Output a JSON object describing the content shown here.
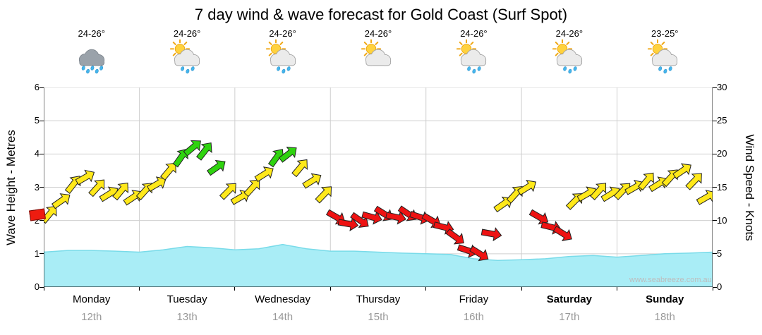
{
  "title": "7 day wind & wave forecast for Gold Coast (Surf Spot)",
  "watermark": "www.seabreeze.com.au",
  "days": [
    {
      "name": "Monday",
      "date": "12th",
      "temp": "24-26°",
      "icon": "rain",
      "bold": false
    },
    {
      "name": "Tuesday",
      "date": "13th",
      "temp": "24-26°",
      "icon": "sun-showers",
      "bold": false
    },
    {
      "name": "Wednesday",
      "date": "14th",
      "temp": "24-26°",
      "icon": "sun-showers",
      "bold": false
    },
    {
      "name": "Thursday",
      "date": "15th",
      "temp": "24-26°",
      "icon": "partly-cloudy",
      "bold": false
    },
    {
      "name": "Friday",
      "date": "16th",
      "temp": "24-26°",
      "icon": "sun-showers",
      "bold": false
    },
    {
      "name": "Saturday",
      "date": "17th",
      "temp": "24-26°",
      "icon": "sun-showers",
      "bold": true
    },
    {
      "name": "Sunday",
      "date": "18th",
      "temp": "23-25°",
      "icon": "sun-showers",
      "bold": true
    }
  ],
  "axes": {
    "left": {
      "title": "Wave Height - Metres",
      "ticks": [
        0,
        1,
        2,
        3,
        4,
        5,
        6
      ],
      "range": [
        0,
        6
      ]
    },
    "right": {
      "title": "Wind Speed - Knots",
      "ticks": [
        0,
        5,
        10,
        15,
        20,
        25,
        30
      ],
      "range": [
        0,
        30
      ]
    }
  },
  "chart_data": {
    "type": "mixed",
    "title": "7 day wind & wave forecast for Gold Coast (Surf Spot)",
    "x_categories": [
      "Monday 12th",
      "Tuesday 13th",
      "Wednesday 14th",
      "Thursday 15th",
      "Friday 16th",
      "Saturday 17th",
      "Sunday 18th"
    ],
    "ylim_left": [
      0,
      6
    ],
    "ylim_right": [
      0,
      30
    ],
    "grid": true,
    "series": [
      {
        "name": "Wave Height",
        "type": "area",
        "unit": "m",
        "axis": "left",
        "color": "#a9edf6",
        "line_color": "#79dbe9",
        "values": [
          1.05,
          1.1,
          1.1,
          1.08,
          1.05,
          1.12,
          1.22,
          1.18,
          1.12,
          1.15,
          1.28,
          1.15,
          1.08,
          1.08,
          1.05,
          1.02,
          1.0,
          0.98,
          0.85,
          0.8,
          0.82,
          0.85,
          0.92,
          0.95,
          0.9,
          0.95,
          1.0,
          1.02,
          1.05
        ]
      },
      {
        "name": "Wind",
        "type": "wind-arrows",
        "unit": "knots",
        "axis": "right",
        "colors": {
          "y": "#ffe81a",
          "g": "#2fd30f",
          "r": "#ee1212"
        },
        "point_format": [
          "knots",
          "direction_deg",
          "color"
        ],
        "points": [
          [
            11,
            40,
            "y"
          ],
          [
            13,
            55,
            "y"
          ],
          [
            15.5,
            38,
            "y"
          ],
          [
            16.5,
            60,
            "y"
          ],
          [
            15,
            42,
            "y"
          ],
          [
            14,
            58,
            "y"
          ],
          [
            14.5,
            40,
            "y"
          ],
          [
            13.5,
            56,
            "y"
          ],
          [
            14.5,
            42,
            "y"
          ],
          [
            15.5,
            60,
            "y"
          ],
          [
            17.5,
            40,
            "y"
          ],
          [
            19.5,
            35,
            "g"
          ],
          [
            21,
            50,
            "g"
          ],
          [
            20.5,
            38,
            "g"
          ],
          [
            18,
            55,
            "g"
          ],
          [
            14.5,
            45,
            "y"
          ],
          [
            13.5,
            60,
            "y"
          ],
          [
            15,
            42,
            "y"
          ],
          [
            17,
            58,
            "y"
          ],
          [
            19.5,
            36,
            "g"
          ],
          [
            20,
            52,
            "g"
          ],
          [
            18,
            40,
            "y"
          ],
          [
            16,
            58,
            "y"
          ],
          [
            14,
            44,
            "y"
          ],
          [
            10.5,
            120,
            "r"
          ],
          [
            9.5,
            100,
            "r"
          ],
          [
            10,
            125,
            "r"
          ],
          [
            10.5,
            105,
            "r"
          ],
          [
            11,
            122,
            "r"
          ],
          [
            10.5,
            102,
            "r"
          ],
          [
            11,
            124,
            "r"
          ],
          [
            10.5,
            108,
            "r"
          ],
          [
            10,
            120,
            "r"
          ],
          [
            9,
            104,
            "r"
          ],
          [
            7.5,
            126,
            "r"
          ],
          [
            5.5,
            108,
            "r"
          ],
          [
            5,
            122,
            "r"
          ],
          [
            8,
            100,
            "r"
          ],
          [
            12.5,
            55,
            "y"
          ],
          [
            14,
            42,
            "y"
          ],
          [
            15,
            58,
            "y"
          ],
          [
            10.5,
            120,
            "r"
          ],
          [
            9,
            104,
            "r"
          ],
          [
            8,
            122,
            "r"
          ],
          [
            13,
            45,
            "y"
          ],
          [
            14,
            60,
            "y"
          ],
          [
            14.5,
            42,
            "y"
          ],
          [
            14,
            58,
            "y"
          ],
          [
            14.5,
            44,
            "y"
          ],
          [
            15,
            60,
            "y"
          ],
          [
            16,
            40,
            "y"
          ],
          [
            15.5,
            58,
            "y"
          ],
          [
            16.5,
            42,
            "y"
          ],
          [
            17.5,
            56,
            "y"
          ],
          [
            16,
            44,
            "y"
          ],
          [
            13.5,
            60,
            "y"
          ]
        ]
      }
    ]
  }
}
